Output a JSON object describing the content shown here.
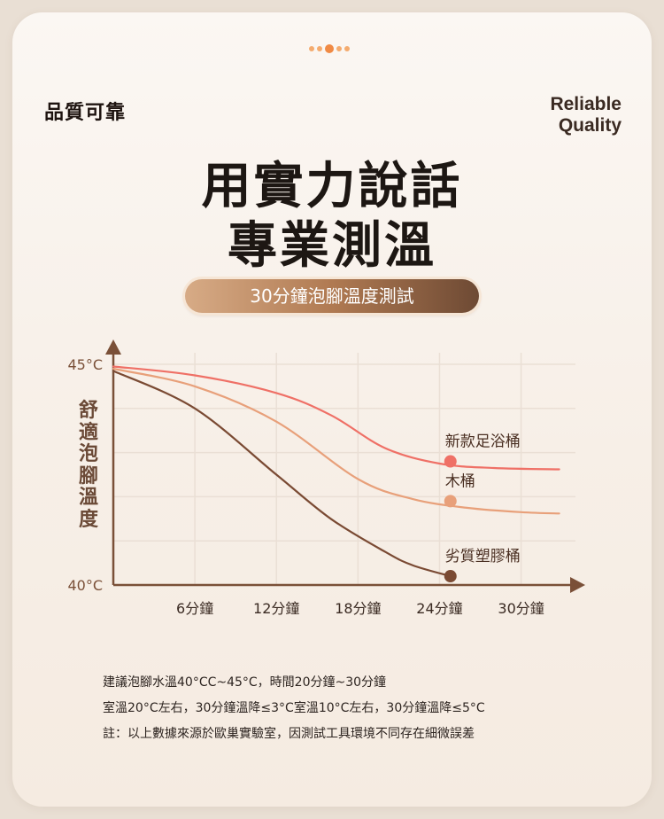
{
  "header": {
    "left_label": "品質可靠",
    "right_label_line1": "Reliable",
    "right_label_line2": "Quality"
  },
  "title": {
    "line1": "用實力說話",
    "line2": "專業測溫"
  },
  "subtitle_pill": "30分鐘泡腳溫度測試",
  "colors": {
    "accent_dots": "#f4ab6f",
    "axis": "#7a5038",
    "grid": "#eadfd5"
  },
  "chart_data": {
    "type": "line",
    "x_tick_labels": [
      "6分鐘",
      "12分鐘",
      "18分鐘",
      "24分鐘",
      "30分鐘"
    ],
    "x_ticks": [
      6,
      12,
      18,
      24,
      30
    ],
    "xlim": [
      0,
      34
    ],
    "y_tick_labels": [
      "45°C",
      "40°C"
    ],
    "y_ticks": [
      45,
      40
    ],
    "ylim": [
      40,
      45
    ],
    "ylabel": "舒適泡腳溫度",
    "xlabel": "",
    "grid": true,
    "series": [
      {
        "name": "新款足浴桶",
        "color": "#ef7066",
        "marker": {
          "x": 24.8,
          "y": 42.8
        },
        "x": [
          0,
          6,
          12,
          16,
          20,
          24,
          28,
          32.8
        ],
        "y": [
          44.95,
          44.75,
          44.35,
          43.85,
          43.1,
          42.75,
          42.65,
          42.62
        ]
      },
      {
        "name": "木桶",
        "color": "#e8a07a",
        "marker": {
          "x": 24.8,
          "y": 41.9
        },
        "x": [
          0,
          6,
          12,
          18,
          22,
          26,
          30,
          32.8
        ],
        "y": [
          44.9,
          44.5,
          43.7,
          42.4,
          41.95,
          41.75,
          41.65,
          41.62
        ]
      },
      {
        "name": "劣質塑膠桶",
        "color": "#7a4a33",
        "marker": {
          "x": 24.8,
          "y": 40.2
        },
        "x": [
          0,
          6,
          12,
          16,
          20,
          22,
          24.8
        ],
        "y": [
          44.85,
          44.0,
          42.5,
          41.5,
          40.75,
          40.45,
          40.2
        ]
      }
    ]
  },
  "notes": [
    "建議泡腳水溫40°CC~45°C，時間20分鐘~30分鐘",
    "室溫20°C左右，30分鐘溫降≤3°C室溫10°C左右，30分鐘溫降≤5°C",
    "註：以上數據來源於歐巢實驗室，因測試工具環境不同存在細微誤差"
  ]
}
